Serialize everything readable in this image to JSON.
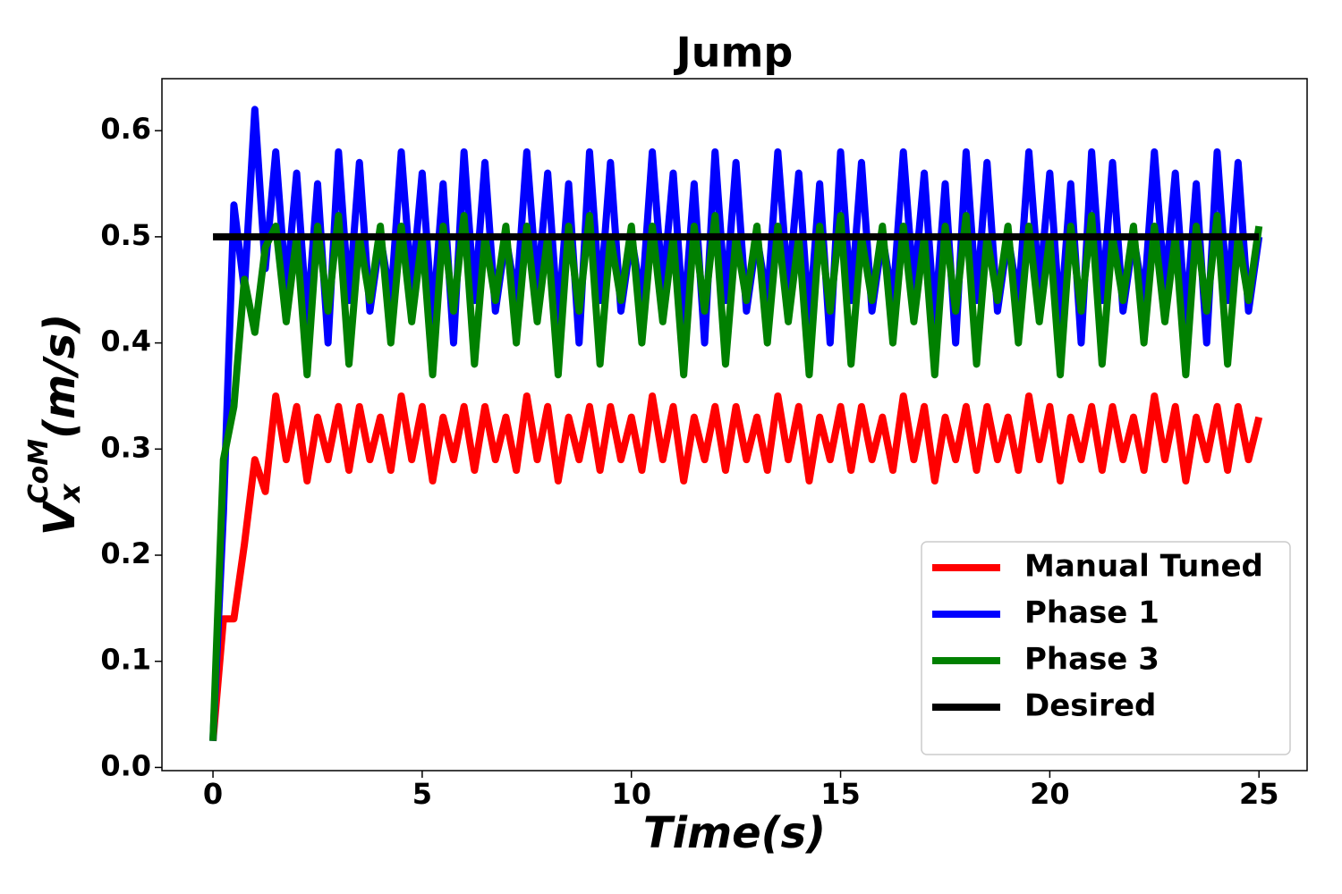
{
  "chart_data": {
    "type": "line",
    "title": "Jump",
    "xlabel": "Time(s)",
    "ylabel": {
      "base": "V",
      "sub": "x",
      "sup": "CoM",
      "unit": "(m/s)"
    },
    "x": [
      0,
      0.25,
      0.5,
      0.75,
      1,
      1.25,
      1.5,
      1.75,
      2,
      2.25,
      2.5,
      2.75,
      3,
      3.25,
      3.5,
      3.75,
      4,
      4.25,
      4.5,
      4.75,
      5,
      5.25,
      5.5,
      5.75,
      6,
      6.25,
      6.5,
      6.75,
      7,
      7.25,
      7.5,
      7.75,
      8,
      8.25,
      8.5,
      8.75,
      9,
      9.25,
      9.5,
      9.75,
      10,
      10.25,
      10.5,
      10.75,
      11,
      11.25,
      11.5,
      11.75,
      12,
      12.25,
      12.5,
      12.75,
      13,
      13.25,
      13.5,
      13.75,
      14,
      14.25,
      14.5,
      14.75,
      15,
      15.25,
      15.5,
      15.75,
      16,
      16.25,
      16.5,
      16.75,
      17,
      17.25,
      17.5,
      17.75,
      18,
      18.25,
      18.5,
      18.75,
      19,
      19.25,
      19.5,
      19.75,
      20,
      20.25,
      20.5,
      20.75,
      21,
      21.25,
      21.5,
      21.75,
      22,
      22.25,
      22.5,
      22.75,
      23,
      23.25,
      23.5,
      23.75,
      24,
      24.25,
      24.5,
      24.75,
      25
    ],
    "series": [
      {
        "name": "Manual Tuned",
        "color": "#ff0000",
        "values": [
          0.025,
          0.14,
          0.14,
          0.21,
          0.29,
          0.26,
          0.35,
          0.29,
          0.34,
          0.27,
          0.33,
          0.29,
          0.34,
          0.28,
          0.34,
          0.29,
          0.33,
          0.28,
          0.35,
          0.29,
          0.34,
          0.27,
          0.33,
          0.29,
          0.34,
          0.28,
          0.34,
          0.29,
          0.33,
          0.28,
          0.35,
          0.29,
          0.34,
          0.27,
          0.33,
          0.29,
          0.34,
          0.28,
          0.34,
          0.29,
          0.33,
          0.28,
          0.35,
          0.29,
          0.34,
          0.27,
          0.33,
          0.29,
          0.34,
          0.28,
          0.34,
          0.29,
          0.33,
          0.28,
          0.35,
          0.29,
          0.34,
          0.27,
          0.33,
          0.29,
          0.34,
          0.28,
          0.34,
          0.29,
          0.33,
          0.28,
          0.35,
          0.29,
          0.34,
          0.27,
          0.33,
          0.29,
          0.34,
          0.28,
          0.34,
          0.29,
          0.33,
          0.28,
          0.35,
          0.29,
          0.34,
          0.27,
          0.33,
          0.29,
          0.34,
          0.28,
          0.34,
          0.29,
          0.33,
          0.28,
          0.35,
          0.29,
          0.34,
          0.27,
          0.33,
          0.29,
          0.34,
          0.28,
          0.34,
          0.29,
          0.33
        ]
      },
      {
        "name": "Phase 1",
        "color": "#0000ff",
        "values": [
          0.025,
          0.24,
          0.53,
          0.45,
          0.62,
          0.47,
          0.58,
          0.45,
          0.56,
          0.42,
          0.55,
          0.4,
          0.58,
          0.44,
          0.57,
          0.43,
          0.5,
          0.44,
          0.58,
          0.45,
          0.56,
          0.42,
          0.55,
          0.4,
          0.58,
          0.44,
          0.57,
          0.43,
          0.5,
          0.44,
          0.58,
          0.45,
          0.56,
          0.42,
          0.55,
          0.4,
          0.58,
          0.44,
          0.57,
          0.43,
          0.5,
          0.44,
          0.58,
          0.45,
          0.56,
          0.42,
          0.55,
          0.4,
          0.58,
          0.44,
          0.57,
          0.43,
          0.5,
          0.44,
          0.58,
          0.45,
          0.56,
          0.42,
          0.55,
          0.4,
          0.58,
          0.44,
          0.57,
          0.43,
          0.5,
          0.44,
          0.58,
          0.45,
          0.56,
          0.42,
          0.55,
          0.4,
          0.58,
          0.44,
          0.57,
          0.43,
          0.5,
          0.44,
          0.58,
          0.45,
          0.56,
          0.42,
          0.55,
          0.4,
          0.58,
          0.44,
          0.57,
          0.43,
          0.5,
          0.44,
          0.58,
          0.45,
          0.56,
          0.42,
          0.55,
          0.4,
          0.58,
          0.44,
          0.57,
          0.43,
          0.5
        ]
      },
      {
        "name": "Phase 3",
        "color": "#008000",
        "values": [
          0.025,
          0.29,
          0.34,
          0.46,
          0.41,
          0.49,
          0.51,
          0.42,
          0.5,
          0.37,
          0.51,
          0.43,
          0.52,
          0.38,
          0.5,
          0.44,
          0.51,
          0.4,
          0.51,
          0.42,
          0.5,
          0.37,
          0.51,
          0.43,
          0.52,
          0.38,
          0.5,
          0.44,
          0.51,
          0.4,
          0.51,
          0.42,
          0.5,
          0.37,
          0.51,
          0.43,
          0.52,
          0.38,
          0.5,
          0.44,
          0.51,
          0.4,
          0.51,
          0.42,
          0.5,
          0.37,
          0.51,
          0.43,
          0.52,
          0.38,
          0.5,
          0.44,
          0.51,
          0.4,
          0.51,
          0.42,
          0.5,
          0.37,
          0.51,
          0.43,
          0.52,
          0.38,
          0.5,
          0.44,
          0.51,
          0.4,
          0.51,
          0.42,
          0.5,
          0.37,
          0.51,
          0.43,
          0.52,
          0.38,
          0.5,
          0.44,
          0.51,
          0.4,
          0.51,
          0.42,
          0.5,
          0.37,
          0.51,
          0.43,
          0.52,
          0.38,
          0.5,
          0.44,
          0.51,
          0.4,
          0.51,
          0.42,
          0.5,
          0.37,
          0.51,
          0.43,
          0.52,
          0.38,
          0.5,
          0.44,
          0.51
        ]
      },
      {
        "name": "Desired",
        "color": "#000000",
        "x": [
          0,
          25
        ],
        "values": [
          0.5,
          0.5
        ]
      }
    ],
    "xlim": [
      -1.22,
      26.15
    ],
    "xticks": [
      0,
      5,
      10,
      15,
      20,
      25
    ],
    "ylim": [
      -0.003,
      0.649
    ],
    "yticks": [
      {
        "value": 0,
        "label": "0.0"
      },
      0.1,
      0.2,
      0.3,
      0.4,
      0.5,
      0.6
    ],
    "grid": false,
    "legend": "lower right"
  }
}
